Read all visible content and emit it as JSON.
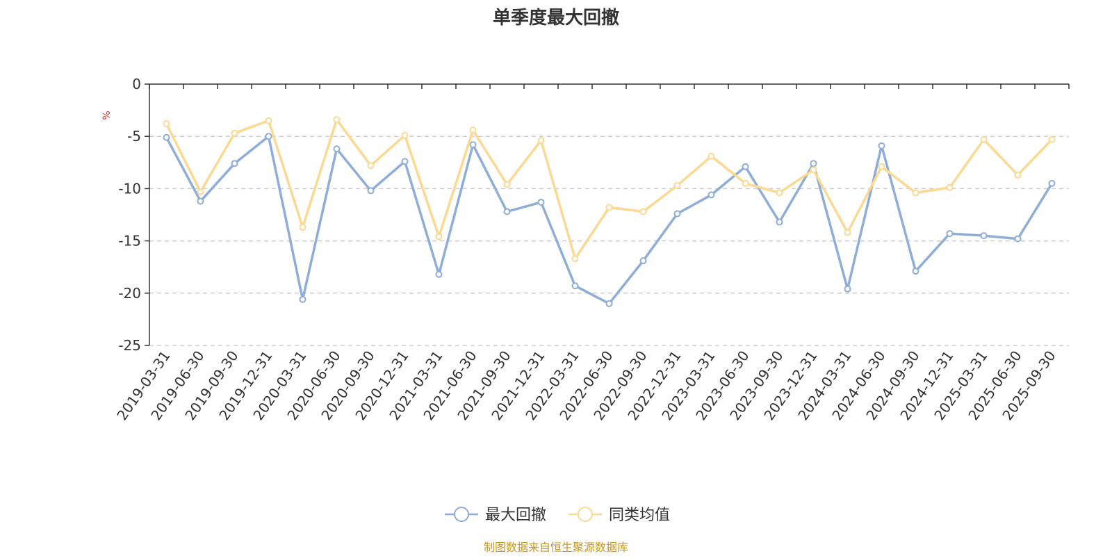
{
  "chart_data": {
    "type": "line",
    "title": "单季度最大回撤",
    "ylabel": "%",
    "ylim": [
      -25,
      0
    ],
    "yticks": [
      0,
      -5,
      -10,
      -15,
      -20,
      -25
    ],
    "grid": true,
    "legend_position": "bottom-center",
    "categories": [
      "2019-03-31",
      "2019-06-30",
      "2019-09-30",
      "2019-12-31",
      "2020-03-31",
      "2020-06-30",
      "2020-09-30",
      "2020-12-31",
      "2021-03-31",
      "2021-06-30",
      "2021-09-30",
      "2021-12-31",
      "2022-03-31",
      "2022-06-30",
      "2022-09-30",
      "2022-12-31",
      "2023-03-31",
      "2023-06-30",
      "2023-09-30",
      "2023-12-31",
      "2024-03-31",
      "2024-06-30",
      "2024-09-30",
      "2024-12-31",
      "2025-03-31",
      "2025-06-30",
      "2025-09-30"
    ],
    "series": [
      {
        "name": "最大回撤",
        "color": "#8eadd9",
        "values": [
          -5.1,
          -11.2,
          -7.6,
          -5.0,
          -20.6,
          -6.2,
          -10.2,
          -7.4,
          -18.2,
          -5.8,
          -12.2,
          -11.3,
          -19.3,
          -21.0,
          -16.9,
          -12.4,
          -10.6,
          -7.9,
          -13.2,
          -7.6,
          -19.6,
          -5.9,
          -17.9,
          -14.3,
          -14.5,
          -14.8,
          -9.5
        ]
      },
      {
        "name": "同类均值",
        "color": "#fbd993",
        "values": [
          -3.8,
          -10.3,
          -4.7,
          -3.5,
          -13.7,
          -3.4,
          -7.8,
          -4.9,
          -14.6,
          -4.4,
          -9.6,
          -5.4,
          -16.7,
          -11.8,
          -12.2,
          -9.7,
          -6.9,
          -9.5,
          -10.4,
          -8.2,
          -14.2,
          -7.9,
          -10.4,
          -9.9,
          -5.3,
          -8.7,
          -5.3
        ]
      }
    ],
    "source_note": "制图数据来自恒生聚源数据库"
  }
}
